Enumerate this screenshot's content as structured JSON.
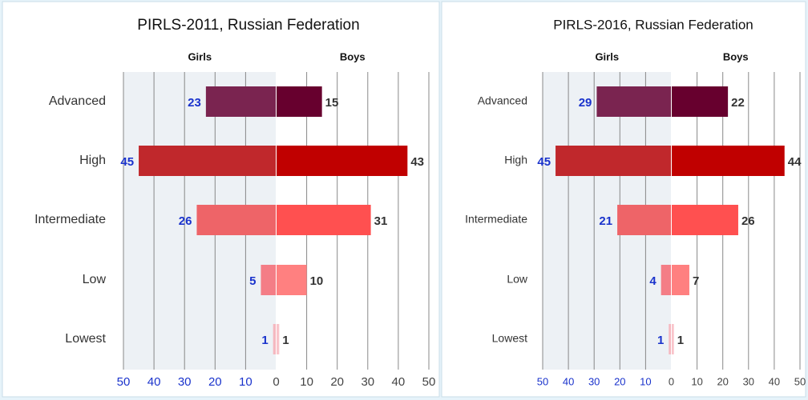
{
  "chart_data": [
    {
      "type": "butterfly",
      "title": "PIRLS-2011, Russian Federation",
      "categories": [
        "Advanced",
        "High",
        "Intermediate",
        "Low",
        "Lowest"
      ],
      "series": [
        {
          "name": "Girls",
          "colors": [
            "#7a2450",
            "#c0282c",
            "#ee6468",
            "#f47d86",
            "#f5b8c0"
          ],
          "values": [
            23,
            45,
            26,
            5,
            1
          ]
        },
        {
          "name": "Boys",
          "colors": [
            "#67002e",
            "#c00000",
            "#ff5050",
            "#ff8080",
            "#f9c4ca"
          ],
          "values": [
            15,
            43,
            31,
            10,
            1
          ]
        }
      ],
      "xlim": [
        -50,
        50
      ],
      "xticks": [
        {
          "value": -50,
          "label": "50"
        },
        {
          "value": -40,
          "label": "40"
        },
        {
          "value": -30,
          "label": "30"
        },
        {
          "value": -20,
          "label": "20"
        },
        {
          "value": -10,
          "label": "10"
        },
        0,
        10,
        20,
        30,
        40,
        50
      ],
      "grid": true
    },
    {
      "type": "butterfly",
      "title": "PIRLS-2016, Russian Federation",
      "categories": [
        "Advanced",
        "High",
        "Intermediate",
        "Low",
        "Lowest"
      ],
      "series": [
        {
          "name": "Girls",
          "colors": [
            "#7a2450",
            "#c0282c",
            "#ee6468",
            "#f47d86",
            "#f5b8c0"
          ],
          "values": [
            29,
            45,
            21,
            4,
            1
          ]
        },
        {
          "name": "Boys",
          "colors": [
            "#67002e",
            "#c00000",
            "#ff5050",
            "#ff8080",
            "#f9c4ca"
          ],
          "values": [
            22,
            44,
            26,
            7,
            1
          ]
        }
      ],
      "xlim": [
        -50,
        50
      ],
      "xticks": [
        {
          "value": -50,
          "label": "50"
        },
        {
          "value": -40,
          "label": "40"
        },
        {
          "value": -30,
          "label": "30"
        },
        {
          "value": -20,
          "label": "20"
        },
        {
          "value": -10,
          "label": "10"
        },
        0,
        10,
        20,
        30,
        40,
        50
      ],
      "grid": true
    }
  ]
}
